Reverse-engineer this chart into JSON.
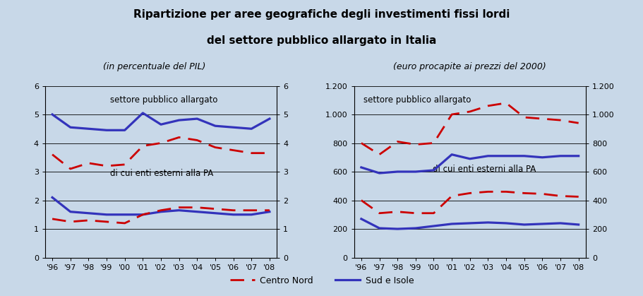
{
  "title_line1": "Ripartizione per aree geografiche degli investimenti fissi lordi",
  "title_line2": "del settore pubblico allargato in Italia",
  "subtitle_left": "(in percentuale del PIL)",
  "subtitle_right": "(euro procapite ai prezzi del 2000)",
  "years": [
    1996,
    1997,
    1998,
    1999,
    2000,
    2001,
    2002,
    2003,
    2004,
    2005,
    2006,
    2007,
    2008
  ],
  "year_labels": [
    "'96",
    "'97",
    "'98",
    "'99",
    "'00",
    "'01",
    "'02",
    "'03",
    "'04",
    "'05",
    "'06",
    "'07",
    "'08"
  ],
  "left_panel": {
    "label_top": "settore pubblico allargato",
    "label_bottom": "di cui enti esterni alla PA",
    "centro_nord_top": [
      3.6,
      3.1,
      3.3,
      3.2,
      3.25,
      3.9,
      4.0,
      4.2,
      4.1,
      3.85,
      3.75,
      3.65,
      3.65
    ],
    "sud_isole_top": [
      5.0,
      4.55,
      4.5,
      4.45,
      4.45,
      5.05,
      4.65,
      4.8,
      4.85,
      4.6,
      4.55,
      4.5,
      4.85
    ],
    "centro_nord_bottom": [
      1.35,
      1.25,
      1.3,
      1.25,
      1.2,
      1.5,
      1.65,
      1.75,
      1.75,
      1.7,
      1.65,
      1.65,
      1.65
    ],
    "sud_isole_bottom": [
      2.1,
      1.6,
      1.55,
      1.5,
      1.5,
      1.5,
      1.6,
      1.65,
      1.6,
      1.55,
      1.5,
      1.5,
      1.6
    ],
    "ylim": [
      0,
      6
    ],
    "yticks": [
      0,
      1,
      2,
      3,
      4,
      5,
      6
    ],
    "ytick_labels": [
      "0",
      "1",
      "2",
      "3",
      "4",
      "5",
      "6"
    ]
  },
  "right_panel": {
    "label_top": "settore pubblico allargato",
    "label_bottom": "di cui enti esterni alla PA",
    "centro_nord_top": [
      800,
      720,
      810,
      790,
      800,
      1000,
      1020,
      1060,
      1080,
      980,
      970,
      960,
      940
    ],
    "sud_isole_top": [
      630,
      590,
      600,
      600,
      610,
      720,
      690,
      710,
      710,
      710,
      700,
      710,
      710
    ],
    "centro_nord_bottom": [
      400,
      310,
      320,
      310,
      310,
      430,
      450,
      460,
      460,
      450,
      445,
      430,
      425
    ],
    "sud_isole_bottom": [
      270,
      205,
      200,
      205,
      220,
      235,
      240,
      245,
      240,
      230,
      235,
      240,
      230
    ],
    "ylim": [
      0,
      1200
    ],
    "yticks": [
      0,
      200,
      400,
      600,
      800,
      1000,
      1200
    ],
    "ytick_labels": [
      "0",
      "200",
      "400",
      "600",
      "800",
      "1.000",
      "1.200"
    ]
  },
  "line_color_centro": "#CC0000",
  "line_color_sud": "#3333BB",
  "background_color": "#C8D8E8",
  "legend_centro": "Centro Nord",
  "legend_sud": "Sud e Isole"
}
